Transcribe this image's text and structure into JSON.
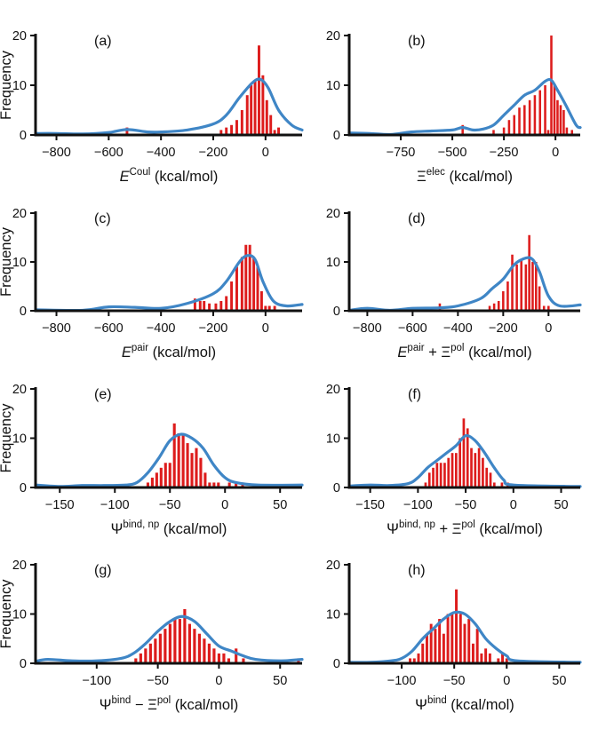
{
  "colors": {
    "bar": "#dd1c1c",
    "kde": "#3f86c6",
    "axis": "#111111"
  },
  "chart_data": [
    {
      "id": "a",
      "type": "bar",
      "panel_label": "(a)",
      "ylabel": "Frequency",
      "xlabel": {
        "main": "E",
        "sup": "Coul",
        "suffix": " (kcal/mol)"
      },
      "xlim": [
        -880,
        140
      ],
      "ylim": [
        0,
        20
      ],
      "xticks": [
        -800,
        -600,
        -400,
        -200,
        0
      ],
      "yticks": [
        0,
        10,
        20
      ],
      "bar_width": 10,
      "bars": [
        [
          -530,
          1.5
        ],
        [
          -170,
          1
        ],
        [
          -150,
          1.5
        ],
        [
          -130,
          2
        ],
        [
          -110,
          3
        ],
        [
          -90,
          5
        ],
        [
          -70,
          8
        ],
        [
          -55,
          10
        ],
        [
          -40,
          11
        ],
        [
          -25,
          18
        ],
        [
          -10,
          12
        ],
        [
          5,
          7
        ],
        [
          20,
          4
        ],
        [
          35,
          1
        ],
        [
          50,
          1.5
        ]
      ],
      "kde": [
        [
          -880,
          0.3
        ],
        [
          -800,
          0.3
        ],
        [
          -700,
          0.2
        ],
        [
          -600,
          0.5
        ],
        [
          -530,
          1.1
        ],
        [
          -450,
          0.6
        ],
        [
          -400,
          0.6
        ],
        [
          -300,
          1
        ],
        [
          -200,
          2.2
        ],
        [
          -150,
          4
        ],
        [
          -100,
          7.5
        ],
        [
          -50,
          10.5
        ],
        [
          -20,
          11.2
        ],
        [
          10,
          9.5
        ],
        [
          50,
          5
        ],
        [
          100,
          2
        ],
        [
          140,
          1
        ]
      ]
    },
    {
      "id": "b",
      "type": "bar",
      "panel_label": "(b)",
      "ylabel": "",
      "xlabel": {
        "main": "Ξ",
        "sup": "elec",
        "suffix": " (kcal/mol)"
      },
      "xlim": [
        -1000,
        120
      ],
      "ylim": [
        0,
        20
      ],
      "xticks": [
        -750,
        -500,
        -250,
        0
      ],
      "yticks": [
        0,
        10,
        20
      ],
      "bar_width": 11,
      "bars": [
        [
          -450,
          2
        ],
        [
          -300,
          1
        ],
        [
          -250,
          1.5
        ],
        [
          -225,
          3
        ],
        [
          -200,
          4
        ],
        [
          -175,
          5.5
        ],
        [
          -150,
          6
        ],
        [
          -125,
          7
        ],
        [
          -100,
          8
        ],
        [
          -75,
          9
        ],
        [
          -50,
          10
        ],
        [
          -35,
          1
        ],
        [
          -20,
          20
        ],
        [
          -5,
          10
        ],
        [
          10,
          7
        ],
        [
          25,
          6
        ],
        [
          40,
          5
        ],
        [
          55,
          1.5
        ],
        [
          80,
          1
        ]
      ],
      "kde": [
        [
          -1000,
          0.4
        ],
        [
          -900,
          0.3
        ],
        [
          -800,
          0.1
        ],
        [
          -700,
          0.6
        ],
        [
          -600,
          0.8
        ],
        [
          -500,
          1
        ],
        [
          -450,
          1.5
        ],
        [
          -400,
          1
        ],
        [
          -350,
          1.2
        ],
        [
          -300,
          2
        ],
        [
          -250,
          4
        ],
        [
          -200,
          6
        ],
        [
          -150,
          8
        ],
        [
          -100,
          9
        ],
        [
          -50,
          10.8
        ],
        [
          -20,
          11
        ],
        [
          10,
          9
        ],
        [
          50,
          6
        ],
        [
          100,
          2
        ],
        [
          120,
          1.5
        ]
      ]
    },
    {
      "id": "c",
      "type": "bar",
      "panel_label": "(c)",
      "ylabel": "Frequency",
      "xlabel": {
        "main": "E",
        "sup": "pair",
        "suffix": " (kcal/mol)"
      },
      "xlim": [
        -880,
        140
      ],
      "ylim": [
        0,
        20
      ],
      "xticks": [
        -800,
        -600,
        -400,
        -200,
        0
      ],
      "yticks": [
        0,
        10,
        20
      ],
      "bar_width": 10,
      "bars": [
        [
          -270,
          2.5
        ],
        [
          -250,
          2
        ],
        [
          -235,
          2
        ],
        [
          -215,
          1.5
        ],
        [
          -190,
          1.5
        ],
        [
          -170,
          2
        ],
        [
          -150,
          3
        ],
        [
          -130,
          6
        ],
        [
          -110,
          9
        ],
        [
          -90,
          11
        ],
        [
          -75,
          13.5
        ],
        [
          -60,
          13.5
        ],
        [
          -45,
          11
        ],
        [
          -30,
          9
        ],
        [
          -15,
          4
        ],
        [
          0,
          1
        ],
        [
          15,
          1
        ],
        [
          35,
          1
        ]
      ],
      "kde": [
        [
          -880,
          0.2
        ],
        [
          -700,
          0.1
        ],
        [
          -600,
          0.8
        ],
        [
          -500,
          0.7
        ],
        [
          -400,
          0.5
        ],
        [
          -300,
          1.5
        ],
        [
          -200,
          3.5
        ],
        [
          -150,
          6
        ],
        [
          -100,
          10
        ],
        [
          -70,
          11.3
        ],
        [
          -40,
          10.5
        ],
        [
          -10,
          6
        ],
        [
          30,
          2
        ],
        [
          80,
          1
        ],
        [
          140,
          1.3
        ]
      ]
    },
    {
      "id": "d",
      "type": "bar",
      "panel_label": "(d)",
      "ylabel": "",
      "xlabel": {
        "main": "E",
        "sup": "pair",
        "suffix": " + Ξ",
        "sup2": "pol",
        "suffix2": " (kcal/mol)"
      },
      "xlim": [
        -880,
        140
      ],
      "ylim": [
        0,
        20
      ],
      "xticks": [
        -800,
        -600,
        -400,
        -200,
        0
      ],
      "yticks": [
        0,
        10,
        20
      ],
      "bar_width": 10,
      "bars": [
        [
          -480,
          1.5
        ],
        [
          -260,
          1
        ],
        [
          -240,
          1.5
        ],
        [
          -220,
          2
        ],
        [
          -200,
          4
        ],
        [
          -180,
          6
        ],
        [
          -160,
          11.5
        ],
        [
          -140,
          9.5
        ],
        [
          -120,
          10.5
        ],
        [
          -100,
          9.5
        ],
        [
          -85,
          15.5
        ],
        [
          -70,
          10
        ],
        [
          -55,
          10
        ],
        [
          -40,
          5
        ],
        [
          -20,
          1
        ],
        [
          0,
          1
        ]
      ],
      "kde": [
        [
          -880,
          0.1
        ],
        [
          -800,
          0.5
        ],
        [
          -700,
          0.1
        ],
        [
          -600,
          0.5
        ],
        [
          -480,
          0.6
        ],
        [
          -400,
          1
        ],
        [
          -300,
          2.5
        ],
        [
          -250,
          4.5
        ],
        [
          -200,
          6.5
        ],
        [
          -150,
          9.5
        ],
        [
          -100,
          10.8
        ],
        [
          -70,
          10.5
        ],
        [
          -40,
          8
        ],
        [
          0,
          3
        ],
        [
          50,
          1
        ],
        [
          140,
          1.2
        ]
      ]
    },
    {
      "id": "e",
      "type": "bar",
      "panel_label": "(e)",
      "ylabel": "Frequency",
      "xlabel": {
        "main": "Ψ",
        "sup": "bind, np",
        "suffix": " (kcal/mol)"
      },
      "xlim": [
        -172,
        70
      ],
      "ylim": [
        0,
        20
      ],
      "xticks": [
        -150,
        -100,
        -50,
        0,
        50
      ],
      "yticks": [
        0,
        10,
        20
      ],
      "bar_width": 2.5,
      "bars": [
        [
          -70,
          1
        ],
        [
          -66,
          2
        ],
        [
          -62,
          3
        ],
        [
          -58,
          4
        ],
        [
          -54,
          5
        ],
        [
          -50,
          5
        ],
        [
          -46,
          13
        ],
        [
          -42,
          11
        ],
        [
          -38,
          11
        ],
        [
          -34,
          9
        ],
        [
          -30,
          7
        ],
        [
          -26,
          8
        ],
        [
          -22,
          6
        ],
        [
          -18,
          3
        ],
        [
          -14,
          1
        ],
        [
          -10,
          1
        ],
        [
          -6,
          1
        ],
        [
          4,
          1
        ],
        [
          10,
          1
        ],
        [
          16,
          1
        ]
      ],
      "kde": [
        [
          -172,
          0.5
        ],
        [
          -150,
          0.2
        ],
        [
          -130,
          0.4
        ],
        [
          -110,
          0.4
        ],
        [
          -90,
          0.5
        ],
        [
          -80,
          1
        ],
        [
          -70,
          3
        ],
        [
          -60,
          6
        ],
        [
          -50,
          9.5
        ],
        [
          -40,
          10.8
        ],
        [
          -30,
          10
        ],
        [
          -20,
          8
        ],
        [
          -10,
          4.5
        ],
        [
          0,
          2
        ],
        [
          10,
          1
        ],
        [
          30,
          0.5
        ],
        [
          70,
          0.5
        ]
      ]
    },
    {
      "id": "f",
      "type": "bar",
      "panel_label": "(f)",
      "ylabel": "",
      "xlabel": {
        "main": "Ψ",
        "sup": "bind, np",
        "suffix": " + Ξ",
        "sup2": "pol",
        "suffix2": " (kcal/mol)"
      },
      "xlim": [
        -172,
        70
      ],
      "ylim": [
        0,
        20
      ],
      "xticks": [
        -150,
        -100,
        -50,
        0,
        50
      ],
      "yticks": [
        0,
        10,
        20
      ],
      "bar_width": 2.5,
      "bars": [
        [
          -92,
          1
        ],
        [
          -88,
          3
        ],
        [
          -84,
          4
        ],
        [
          -80,
          5
        ],
        [
          -76,
          5
        ],
        [
          -72,
          5
        ],
        [
          -68,
          6
        ],
        [
          -64,
          7
        ],
        [
          -60,
          7
        ],
        [
          -56,
          10
        ],
        [
          -52,
          14
        ],
        [
          -48,
          12
        ],
        [
          -44,
          8
        ],
        [
          -40,
          7
        ],
        [
          -36,
          8
        ],
        [
          -32,
          6
        ],
        [
          -28,
          4
        ],
        [
          -24,
          3
        ],
        [
          -20,
          1
        ],
        [
          -12,
          1
        ],
        [
          -6,
          1
        ]
      ],
      "kde": [
        [
          -172,
          0.3
        ],
        [
          -150,
          0.5
        ],
        [
          -130,
          0.4
        ],
        [
          -110,
          0.8
        ],
        [
          -100,
          2
        ],
        [
          -90,
          4
        ],
        [
          -80,
          5.5
        ],
        [
          -70,
          7
        ],
        [
          -60,
          8.5
        ],
        [
          -50,
          10.5
        ],
        [
          -40,
          9.5
        ],
        [
          -30,
          7
        ],
        [
          -20,
          4
        ],
        [
          -10,
          1.5
        ],
        [
          0,
          0.5
        ],
        [
          70,
          0.2
        ]
      ]
    },
    {
      "id": "g",
      "type": "bar",
      "panel_label": "(g)",
      "ylabel": "Frequency",
      "xlabel": {
        "main": "Ψ",
        "sup": "bind",
        "suffix": " − Ξ",
        "sup2": "pol",
        "suffix2": " (kcal/mol)"
      },
      "xlim": [
        -150,
        68
      ],
      "ylim": [
        0,
        20
      ],
      "xticks": [
        -100,
        -50,
        0,
        50
      ],
      "yticks": [
        0,
        10,
        20
      ],
      "bar_width": 2.3,
      "bars": [
        [
          -68,
          1
        ],
        [
          -64,
          2
        ],
        [
          -60,
          3
        ],
        [
          -56,
          4
        ],
        [
          -52,
          5
        ],
        [
          -48,
          6
        ],
        [
          -44,
          7
        ],
        [
          -40,
          8
        ],
        [
          -36,
          9
        ],
        [
          -32,
          9
        ],
        [
          -28,
          11
        ],
        [
          -24,
          8
        ],
        [
          -20,
          7
        ],
        [
          -16,
          6
        ],
        [
          -12,
          5
        ],
        [
          -8,
          4
        ],
        [
          -4,
          3
        ],
        [
          0,
          2
        ],
        [
          4,
          2
        ],
        [
          8,
          1
        ],
        [
          14,
          3
        ],
        [
          20,
          1
        ],
        [
          65,
          1
        ]
      ],
      "kde": [
        [
          -150,
          0.4
        ],
        [
          -140,
          0.8
        ],
        [
          -120,
          0.5
        ],
        [
          -100,
          0.5
        ],
        [
          -80,
          1
        ],
        [
          -70,
          2
        ],
        [
          -60,
          4
        ],
        [
          -50,
          6.5
        ],
        [
          -40,
          8.5
        ],
        [
          -30,
          9.5
        ],
        [
          -20,
          8.5
        ],
        [
          -10,
          6
        ],
        [
          0,
          3.5
        ],
        [
          10,
          2.5
        ],
        [
          20,
          1.5
        ],
        [
          30,
          0.8
        ],
        [
          50,
          0.5
        ],
        [
          68,
          0.8
        ]
      ]
    },
    {
      "id": "h",
      "type": "bar",
      "panel_label": "(h)",
      "ylabel": "",
      "xlabel": {
        "main": "Ψ",
        "sup": "bind",
        "suffix": " (kcal/mol)"
      },
      "xlim": [
        -150,
        70
      ],
      "ylim": [
        0,
        20
      ],
      "xticks": [
        -100,
        -50,
        0,
        50
      ],
      "yticks": [
        0,
        10,
        20
      ],
      "bar_width": 2.5,
      "bars": [
        [
          -92,
          1
        ],
        [
          -88,
          1
        ],
        [
          -84,
          2
        ],
        [
          -80,
          4
        ],
        [
          -76,
          6
        ],
        [
          -72,
          8
        ],
        [
          -68,
          7
        ],
        [
          -64,
          9
        ],
        [
          -60,
          6
        ],
        [
          -56,
          10
        ],
        [
          -52,
          10
        ],
        [
          -48,
          15
        ],
        [
          -44,
          10
        ],
        [
          -40,
          8
        ],
        [
          -36,
          9
        ],
        [
          -32,
          4
        ],
        [
          -28,
          7
        ],
        [
          -24,
          2
        ],
        [
          -20,
          3
        ],
        [
          -16,
          2
        ],
        [
          -8,
          1
        ],
        [
          -4,
          2
        ],
        [
          0,
          1
        ]
      ],
      "kde": [
        [
          -150,
          0.2
        ],
        [
          -130,
          0.2
        ],
        [
          -110,
          0.5
        ],
        [
          -100,
          1
        ],
        [
          -90,
          2.5
        ],
        [
          -80,
          5
        ],
        [
          -70,
          7
        ],
        [
          -60,
          9
        ],
        [
          -50,
          10.3
        ],
        [
          -40,
          10
        ],
        [
          -30,
          8
        ],
        [
          -20,
          5
        ],
        [
          -10,
          3
        ],
        [
          0,
          1.5
        ],
        [
          10,
          0.5
        ],
        [
          70,
          0.2
        ]
      ]
    }
  ]
}
